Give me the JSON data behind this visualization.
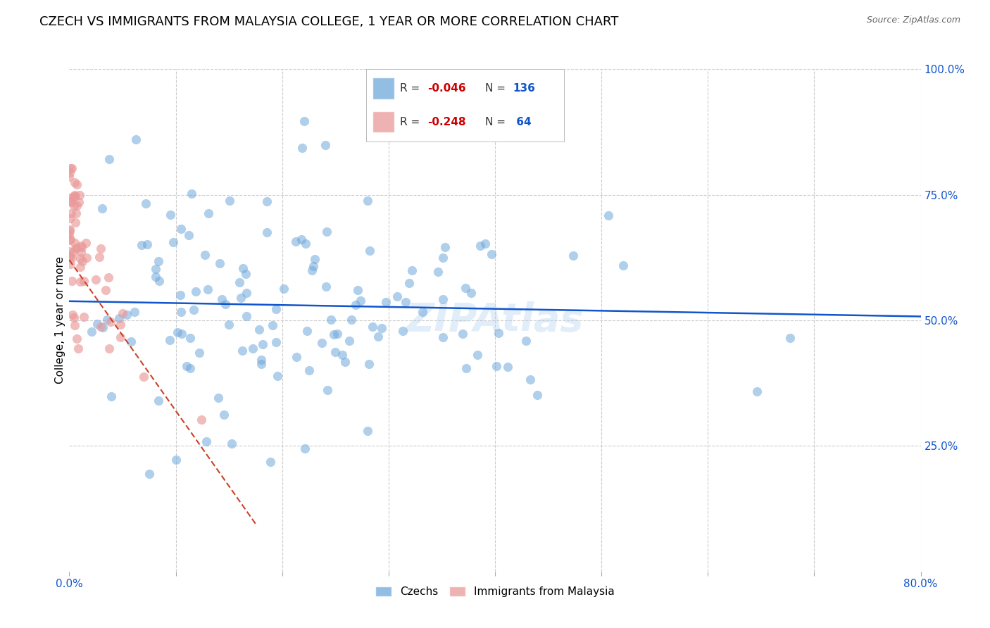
{
  "title": "CZECH VS IMMIGRANTS FROM MALAYSIA COLLEGE, 1 YEAR OR MORE CORRELATION CHART",
  "source": "Source: ZipAtlas.com",
  "xlabel": "",
  "ylabel": "College, 1 year or more",
  "xlim": [
    0.0,
    0.8
  ],
  "ylim": [
    0.0,
    1.0
  ],
  "ytick_positions": [
    0.0,
    0.25,
    0.5,
    0.75,
    1.0
  ],
  "ytick_labels": [
    "",
    "25.0%",
    "50.0%",
    "75.0%",
    "100.0%"
  ],
  "blue_color": "#6fa8dc",
  "pink_color": "#ea9999",
  "blue_line_color": "#1155cc",
  "pink_line_color": "#cc4125",
  "watermark": "ZIPAtlas",
  "legend_label1": "Czechs",
  "legend_label2": "Immigrants from Malaysia",
  "blue_R": -0.046,
  "blue_N": 136,
  "pink_R": -0.248,
  "pink_N": 64,
  "blue_seed": 42,
  "pink_seed": 7,
  "grid_color": "#cccccc",
  "grid_style": "--",
  "background_color": "#ffffff",
  "title_fontsize": 13,
  "axis_label_fontsize": 11,
  "tick_fontsize": 11,
  "watermark_fontsize": 40,
  "watermark_color": "#aaccee",
  "watermark_alpha": 0.35
}
